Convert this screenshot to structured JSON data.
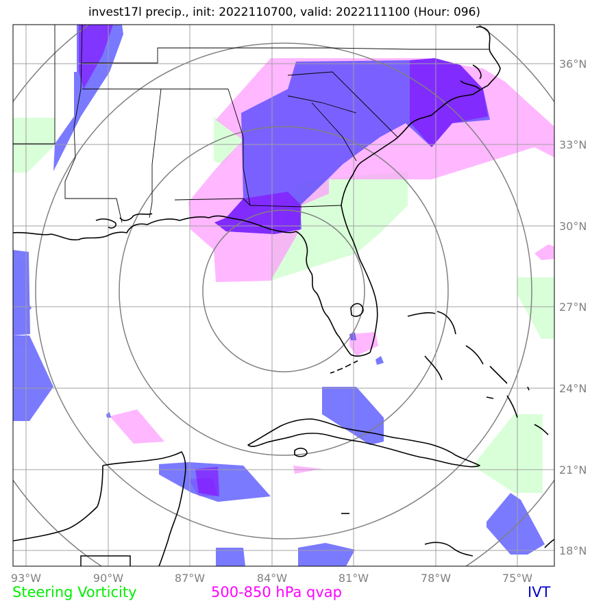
{
  "title": "invest17l precip., init: 2022110700, valid: 2022111100 (Hour: 096)",
  "legend": {
    "vorticity": "Steering Vorticity",
    "qvap": "500-850 hPa qvap",
    "ivt": "IVT"
  },
  "colors": {
    "vorticity": "#ccffcc",
    "qvap": "#ff99ff",
    "ivt": "#3333ff",
    "overlap": "#8800ff",
    "grid": "#a0a0a0",
    "rings": "#808080",
    "coast": "#000000"
  },
  "lon_labels": [
    "93°W",
    "90°W",
    "87°W",
    "84°W",
    "81°W",
    "78°W",
    "75°W"
  ],
  "lat_labels": [
    "36°N",
    "33°N",
    "30°N",
    "27°N",
    "24°N",
    "21°N",
    "18°N"
  ]
}
